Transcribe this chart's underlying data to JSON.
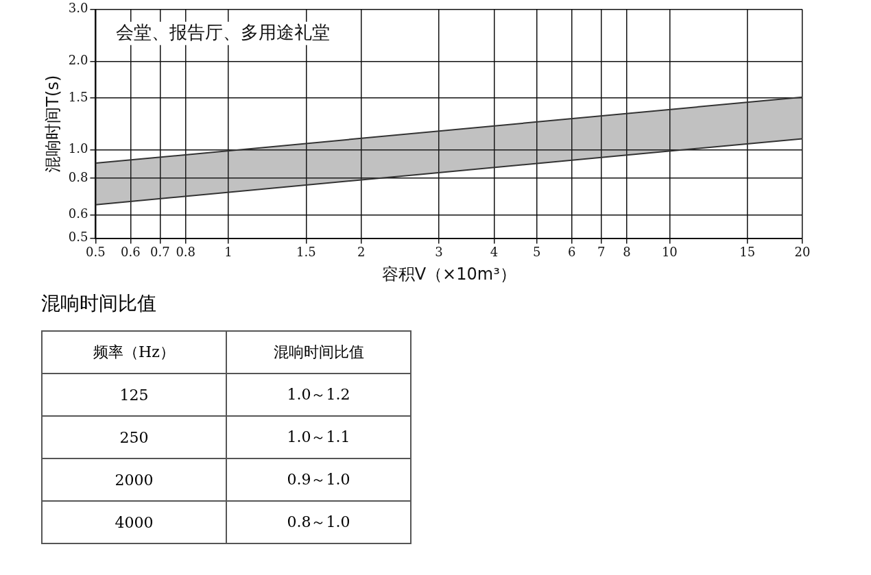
{
  "chart_data": [
    {
      "type": "line",
      "title": "会堂、报告厅、多用途礼堂",
      "xlabel": "容积V（×10m³）",
      "ylabel": "混响时间T(s)",
      "x": [
        0.5,
        20
      ],
      "series": [
        {
          "type": "area",
          "color": "#333333",
          "values": [
            0.9,
            1.51
          ]
        },
        {
          "type": "line",
          "color": "#333333",
          "values": [
            0.65,
            1.09
          ]
        }
      ],
      "log": "xy",
      "xlim": [
        0.5,
        20
      ],
      "xticks": [
        0.5,
        0.6,
        0.7,
        0.8,
        1,
        1.5,
        2,
        3,
        4,
        5,
        6,
        7,
        8,
        10,
        15,
        20
      ],
      "ylim": [
        0.5,
        3
      ],
      "yticks": [
        0.5,
        0.6,
        0.8,
        {
          "value": 1,
          "label": "1.0"
        },
        1.5,
        {
          "value": 2,
          "label": "2.0"
        },
        {
          "value": 3,
          "label": "3.0"
        }
      ],
      "grid": true,
      "legend": false,
      "marker": "none",
      "line_style": "solid"
    },
    {
      "type": "other",
      "title": "混响时间比值",
      "annotations": [
        "频率（Hz）",
        "混响时间比值",
        "125",
        "1.0～1.2",
        "250",
        "1.0～1.1",
        "2000",
        "0.9～1.0",
        "4000",
        "0.8～1.0"
      ]
    }
  ]
}
